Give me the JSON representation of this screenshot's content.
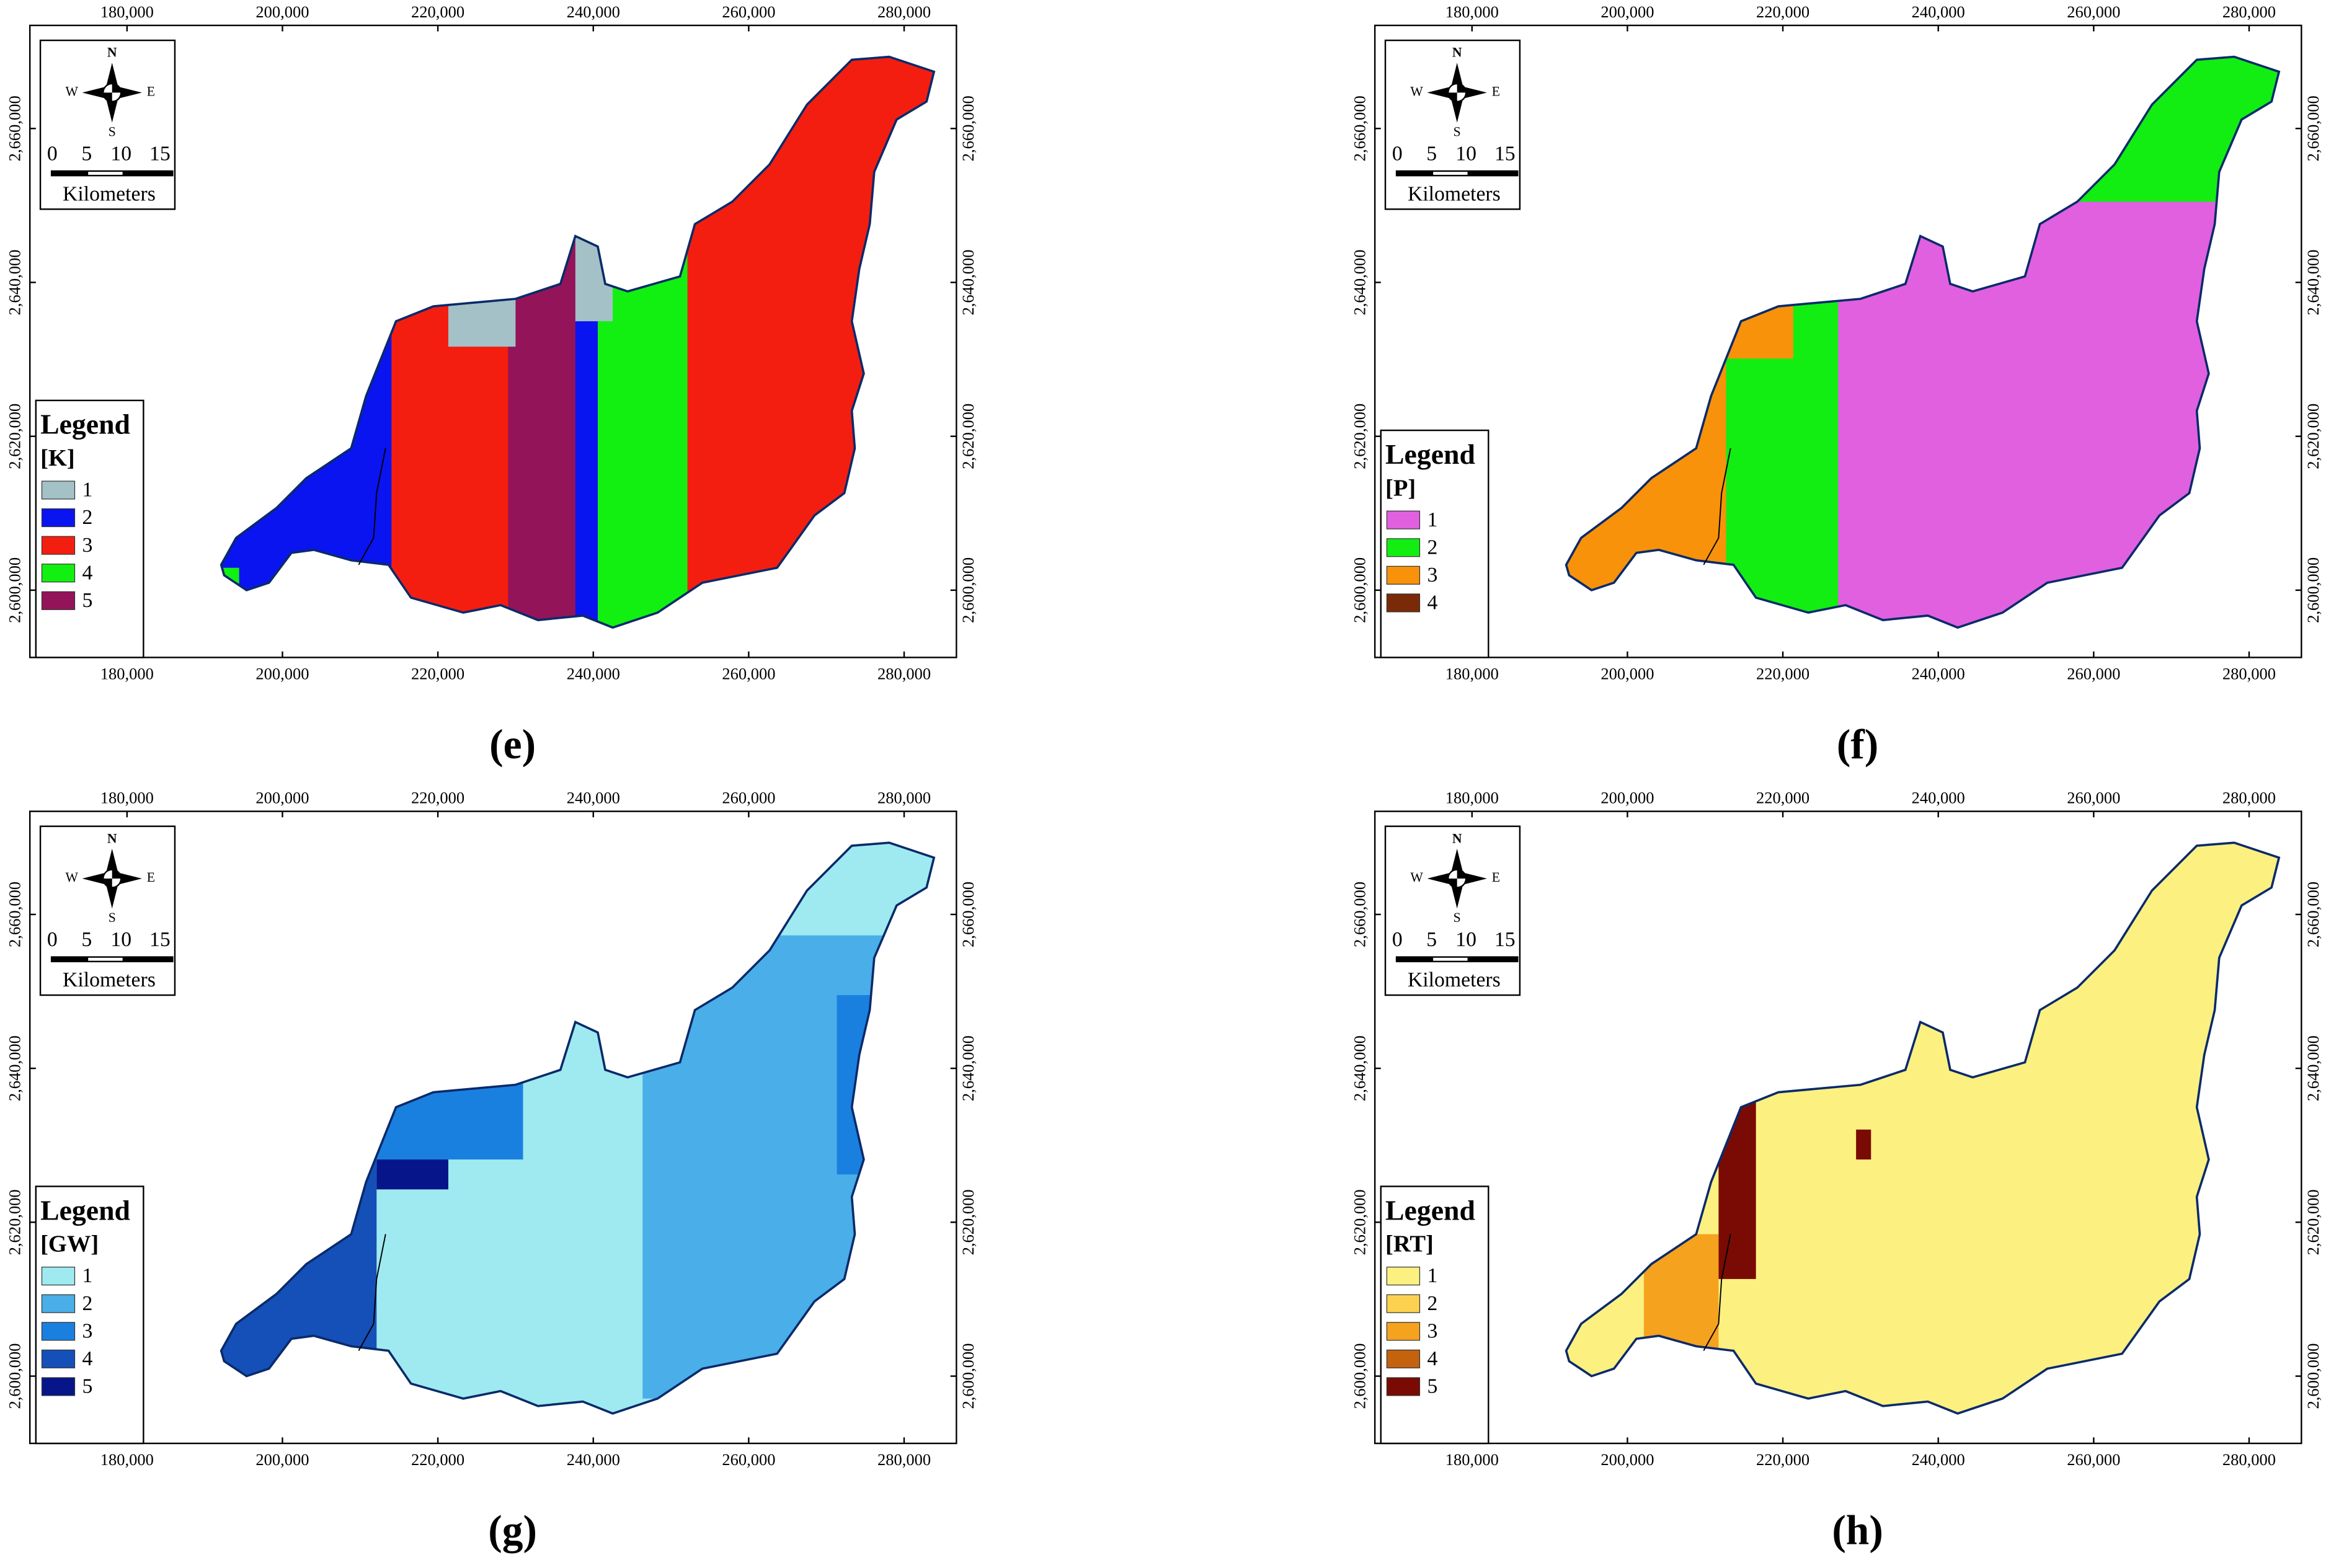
{
  "axes": {
    "xticks": [
      {
        "value": 180000,
        "label": "180,000"
      },
      {
        "value": 200000,
        "label": "200,000"
      },
      {
        "value": 220000,
        "label": "220,000"
      },
      {
        "value": 240000,
        "label": "240,000"
      },
      {
        "value": 260000,
        "label": "260,000"
      },
      {
        "value": 280000,
        "label": "280,000"
      }
    ],
    "yticks": [
      {
        "value": 2600000,
        "label": "2,600,000"
      },
      {
        "value": 2620000,
        "label": "2,620,000"
      },
      {
        "value": 2640000,
        "label": "2,640,000"
      },
      {
        "value": 2660000,
        "label": "2,660,000"
      }
    ],
    "xlim": [
      167500,
      286730
    ],
    "ylim": [
      2591260,
      2673400
    ]
  },
  "compass": {
    "n": "N",
    "s": "S",
    "e": "E",
    "w": "W"
  },
  "scale_bar": {
    "labels": [
      0,
      5,
      10,
      15
    ],
    "unit": "Kilometers"
  },
  "legend_title": "Legend",
  "panels": [
    {
      "caption": "(e)",
      "variable": "[K]",
      "items": [
        {
          "label": 1,
          "color": "#a3c1c6"
        },
        {
          "label": 2,
          "color": "#0a14f0"
        },
        {
          "label": 3,
          "color": "#f41e10"
        },
        {
          "label": 4,
          "color": "#12f012"
        },
        {
          "label": 5,
          "color": "#941459"
        }
      ]
    },
    {
      "caption": "(f)",
      "variable": "[P]",
      "items": [
        {
          "label": 1,
          "color": "#e060e0"
        },
        {
          "label": 2,
          "color": "#12ee12"
        },
        {
          "label": 3,
          "color": "#f7920a"
        },
        {
          "label": 4,
          "color": "#7a2a06"
        }
      ]
    },
    {
      "caption": "(g)",
      "variable": "[GW]",
      "items": [
        {
          "label": 1,
          "color": "#9eeaf0"
        },
        {
          "label": 2,
          "color": "#4aaee8"
        },
        {
          "label": 3,
          "color": "#1a80e0"
        },
        {
          "label": 4,
          "color": "#1450b8"
        },
        {
          "label": 5,
          "color": "#06168a"
        }
      ]
    },
    {
      "caption": "(h)",
      "variable": "[RT]",
      "items": [
        {
          "label": 1,
          "color": "#fcf080"
        },
        {
          "label": 2,
          "color": "#fcd150"
        },
        {
          "label": 3,
          "color": "#f5a21e"
        },
        {
          "label": 4,
          "color": "#c4620e"
        },
        {
          "label": 5,
          "color": "#7a0a04"
        }
      ]
    }
  ]
}
